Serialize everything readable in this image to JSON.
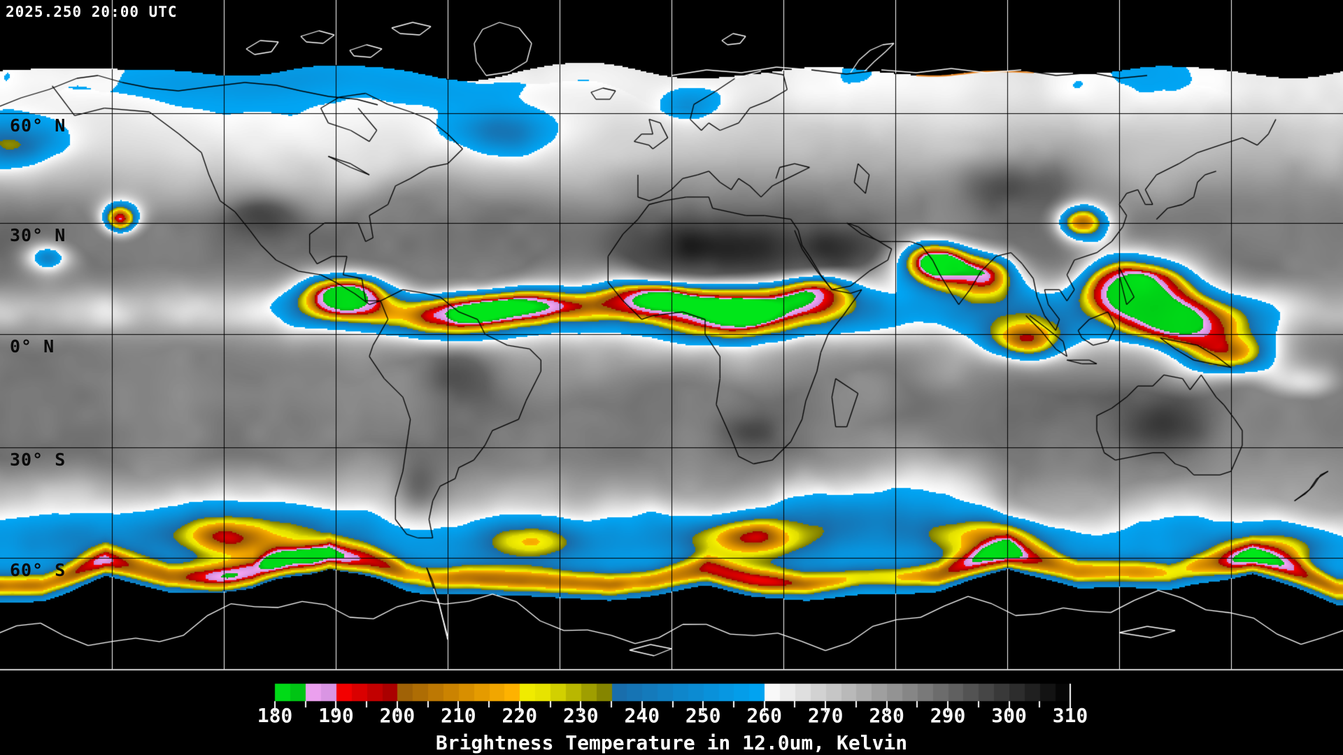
{
  "header": {
    "timestamp": "2025.250 20:00 UTC"
  },
  "map": {
    "latitude_labels": [
      "60° N",
      "30° N",
      "0° N",
      "30° S",
      "60° S"
    ],
    "gridline_color_over_data": "#000000",
    "gridline_color_over_void": "#ffffff",
    "coastline_color_over_data": "#000000",
    "coastline_color_over_void": "#ffffff",
    "background_color": "#000000"
  },
  "colorbar": {
    "title": "Brightness Temperature in 12.0um, Kelvin",
    "min": 180,
    "max": 310,
    "minor_tick_step": 5,
    "major_tick_step": 10,
    "tick_labels": [
      "180",
      "190",
      "200",
      "210",
      "220",
      "230",
      "240",
      "250",
      "260",
      "270",
      "280",
      "290",
      "300",
      "310"
    ],
    "tick_color": "#ffffff",
    "label_color": "#ffffff",
    "segments": [
      {
        "from": 180,
        "to": 185,
        "c1": "#00e619",
        "c2": "#00b912"
      },
      {
        "from": 185,
        "to": 191,
        "c1": "#f4a6f4",
        "c2": "#c98bd9"
      },
      {
        "from": 191,
        "to": 200,
        "c1": "#f50000",
        "c2": "#9e0000"
      },
      {
        "from": 200,
        "to": 210,
        "c1": "#995c07",
        "c2": "#d28900"
      },
      {
        "from": 210,
        "to": 219,
        "c1": "#d28900",
        "c2": "#ffb300"
      },
      {
        "from": 219,
        "to": 226,
        "c1": "#f7f200",
        "c2": "#e0dc00"
      },
      {
        "from": 226,
        "to": 235,
        "c1": "#d5d200",
        "c2": "#787800"
      },
      {
        "from": 235,
        "to": 260,
        "c1": "#1a6ba8",
        "c2": "#00a6f5"
      },
      {
        "from": 260,
        "to": 310,
        "c1": "#ffffff",
        "c2": "#000000"
      }
    ]
  }
}
